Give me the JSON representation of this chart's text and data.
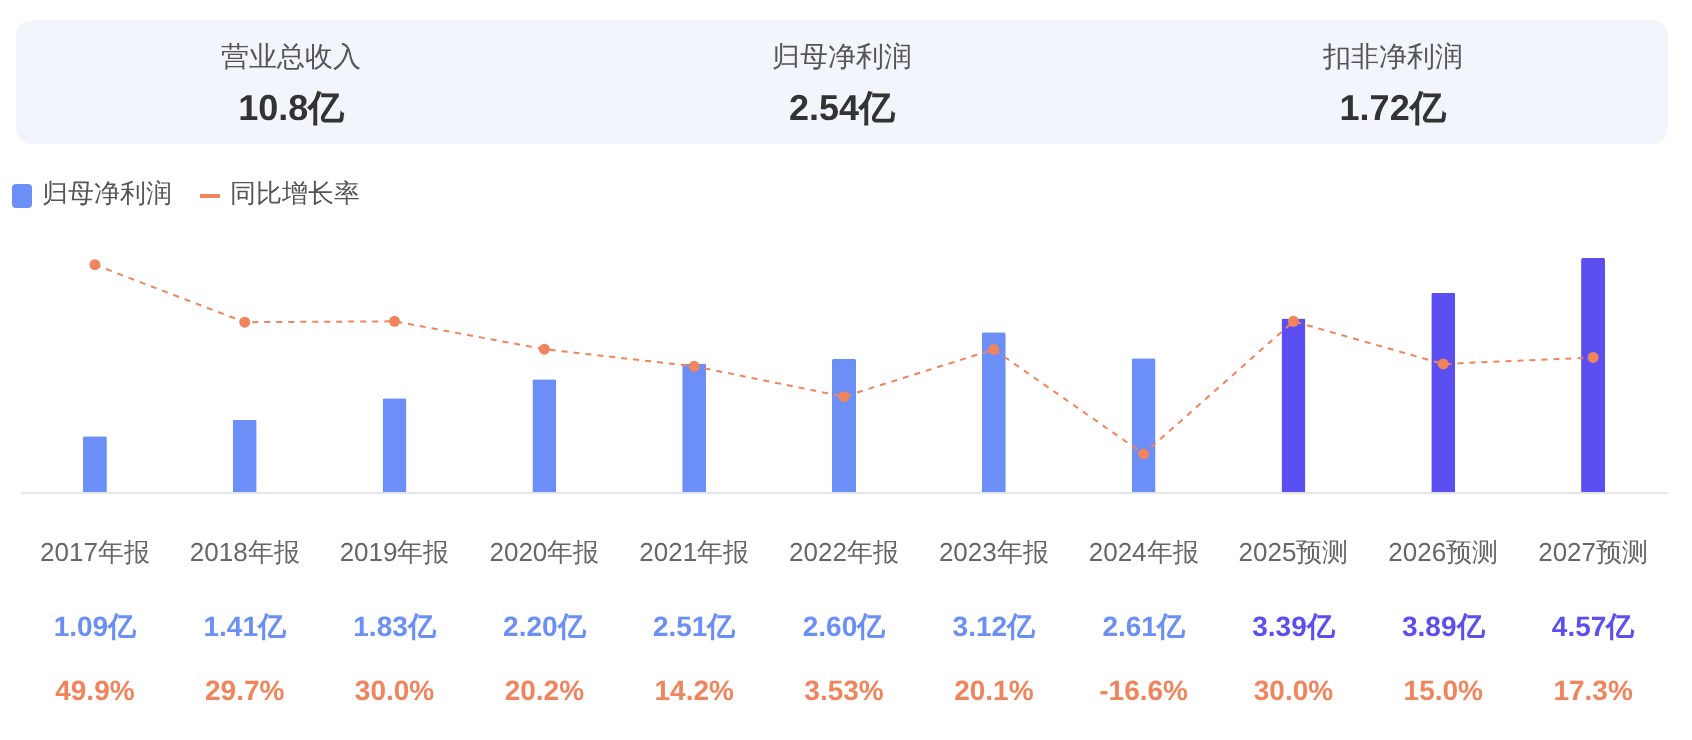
{
  "chart_data": [
    {
      "type": "other",
      "annotations": [
        "营业总收入",
        "10.8亿",
        "归母净利润",
        "2.54亿",
        "扣非净利润",
        "1.72亿"
      ]
    },
    {
      "type": "bar",
      "categories": [
        "2017年报",
        "2018年报",
        "2019年报",
        "2020年报",
        "2021年报",
        "2022年报",
        "2023年报",
        "2024年报",
        "2025预测",
        "2026预测",
        "2027预测"
      ],
      "series": [
        {
          "name": "归母净利润",
          "colors": [
            "#6b8ff7",
            "#6b8ff7",
            "#6b8ff7",
            "#6b8ff7",
            "#6b8ff7",
            "#6b8ff7",
            "#6b8ff7",
            "#6b8ff7",
            "#5b4ff2",
            "#5b4ff2",
            "#5b4ff2"
          ],
          "values": [
            1.09,
            1.41,
            1.83,
            2.2,
            2.51,
            2.6,
            3.12,
            2.61,
            3.39,
            3.89,
            4.57
          ],
          "value_labels": [
            "1.09亿",
            "1.41亿",
            "1.83亿",
            "2.20亿",
            "2.51亿",
            "2.60亿",
            "3.12亿",
            "2.61亿",
            "3.39亿",
            "3.89亿",
            "4.57亿"
          ]
        },
        {
          "name": "同比增长率",
          "type": "line",
          "axis": "y2",
          "color": "#f0845c",
          "values": [
            49.9,
            29.7,
            30.0,
            20.2,
            14.2,
            3.53,
            20.1,
            -16.6,
            30.0,
            15.0,
            17.3
          ],
          "value_labels": [
            "49.9%",
            "29.7%",
            "30.0%",
            "20.2%",
            "14.2%",
            "3.53%",
            "20.1%",
            "-16.6%",
            "30.0%",
            "15.0%",
            "17.3%"
          ]
        }
      ],
      "legend": "top left",
      "marker": "circle",
      "line_style": "dashed",
      "data_labels": true
    }
  ]
}
